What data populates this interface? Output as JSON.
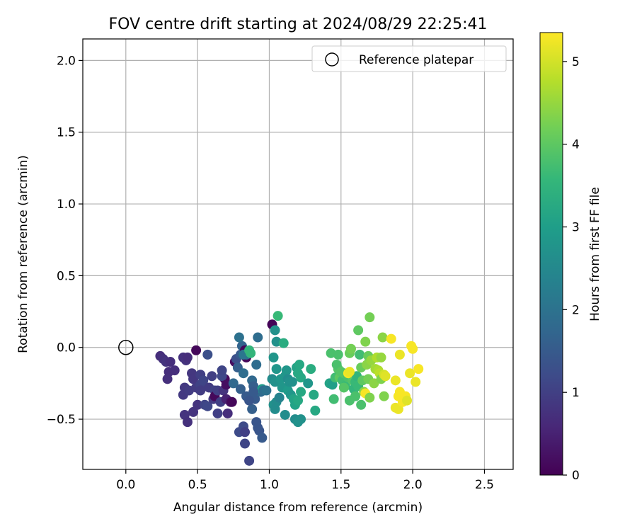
{
  "chart_data": {
    "type": "scatter",
    "title": "FOV centre drift starting at 2024/08/29 22:25:41",
    "xlabel": "Angular distance from reference (arcmin)",
    "ylabel": "Rotation from reference (arcmin)",
    "xlim": [
      -0.3,
      2.7
    ],
    "ylim": [
      -0.85,
      2.15
    ],
    "x_ticks": [
      0.0,
      0.5,
      1.0,
      1.5,
      2.0,
      2.5
    ],
    "x_tick_labels": [
      "0.0",
      "0.5",
      "1.0",
      "1.5",
      "2.0",
      "2.5"
    ],
    "y_ticks": [
      -0.5,
      0.0,
      0.5,
      1.0,
      1.5,
      2.0
    ],
    "y_tick_labels": [
      "−0.5",
      "0.0",
      "0.5",
      "1.0",
      "1.5",
      "2.0"
    ],
    "grid": true,
    "legend": {
      "position": "top-right",
      "entries": [
        {
          "label": "Reference platepar",
          "marker": "open-circle"
        }
      ]
    },
    "reference_point": {
      "x": 0.0,
      "y": 0.0
    },
    "colorbar": {
      "label": "Hours from first FF file",
      "range": [
        0,
        5.35
      ],
      "ticks": [
        0,
        1,
        2,
        3,
        4,
        5
      ],
      "tick_labels": [
        "0",
        "1",
        "2",
        "3",
        "4",
        "5"
      ],
      "colormap": [
        "#440154",
        "#482878",
        "#3e4a89",
        "#31688e",
        "#26828e",
        "#1f9e89",
        "#35b779",
        "#6ece58",
        "#b5de2b",
        "#fde725"
      ]
    },
    "points": [
      [
        0.24,
        -0.06,
        0.7
      ],
      [
        0.26,
        -0.08,
        0.75
      ],
      [
        0.28,
        -0.1,
        0.8
      ],
      [
        0.31,
        -0.1,
        0.72
      ],
      [
        0.3,
        -0.17,
        0.7
      ],
      [
        0.34,
        -0.16,
        0.72
      ],
      [
        0.29,
        -0.22,
        0.74
      ],
      [
        0.4,
        -0.07,
        0.76
      ],
      [
        0.42,
        -0.09,
        0.78
      ],
      [
        0.43,
        -0.07,
        0.7
      ],
      [
        0.46,
        -0.18,
        0.85
      ],
      [
        0.47,
        -0.22,
        0.86
      ],
      [
        0.49,
        -0.02,
        0.1
      ],
      [
        0.41,
        -0.28,
        0.9
      ],
      [
        0.4,
        -0.33,
        0.9
      ],
      [
        0.44,
        -0.3,
        0.95
      ],
      [
        0.49,
        -0.28,
        0.92
      ],
      [
        0.52,
        -0.19,
        1.0
      ],
      [
        0.52,
        -0.26,
        1.05
      ],
      [
        0.54,
        -0.23,
        1.1
      ],
      [
        0.57,
        -0.05,
        1.3
      ],
      [
        0.5,
        -0.4,
        0.8
      ],
      [
        0.55,
        -0.4,
        1.1
      ],
      [
        0.57,
        -0.41,
        1.15
      ],
      [
        0.52,
        -0.3,
        0.95
      ],
      [
        0.58,
        -0.28,
        0.95
      ],
      [
        0.6,
        -0.2,
        1.0
      ],
      [
        0.62,
        -0.3,
        1.05
      ],
      [
        0.61,
        -0.36,
        0.9
      ],
      [
        0.62,
        -0.34,
        0.1
      ],
      [
        0.64,
        -0.46,
        1.0
      ],
      [
        0.66,
        -0.38,
        1.0
      ],
      [
        0.64,
        -0.3,
        1.0
      ],
      [
        0.68,
        -0.3,
        0.8
      ],
      [
        0.69,
        -0.22,
        0.1
      ],
      [
        0.67,
        -0.2,
        1.15
      ],
      [
        0.7,
        -0.26,
        0.2
      ],
      [
        0.7,
        -0.36,
        0.5
      ],
      [
        0.71,
        -0.46,
        0.7
      ],
      [
        0.73,
        -0.38,
        0.3
      ],
      [
        0.74,
        -0.38,
        0.1
      ],
      [
        0.67,
        -0.16,
        1.1
      ],
      [
        0.47,
        -0.45,
        0.8
      ],
      [
        0.41,
        -0.47,
        0.8
      ],
      [
        0.43,
        -0.52,
        0.75
      ],
      [
        0.76,
        -0.1,
        0.2
      ],
      [
        0.77,
        -0.08,
        1.3
      ],
      [
        0.75,
        -0.25,
        1.8
      ],
      [
        0.78,
        -0.14,
        1.6
      ],
      [
        0.8,
        -0.05,
        1.5
      ],
      [
        0.81,
        0.01,
        1.7
      ],
      [
        0.82,
        -0.18,
        1.9
      ],
      [
        0.83,
        -0.02,
        0.1
      ],
      [
        0.84,
        -0.07,
        0.1
      ],
      [
        0.84,
        -0.05,
        2.0
      ],
      [
        0.82,
        -0.55,
        1.2
      ],
      [
        0.79,
        -0.59,
        1.2
      ],
      [
        0.83,
        -0.59,
        1.0
      ],
      [
        0.83,
        -0.67,
        1.1
      ],
      [
        0.86,
        -0.79,
        1.1
      ],
      [
        0.88,
        -0.23,
        1.8
      ],
      [
        0.89,
        -0.27,
        1.6
      ],
      [
        0.9,
        -0.36,
        1.5
      ],
      [
        0.88,
        -0.43,
        1.6
      ],
      [
        0.91,
        -0.52,
        1.4
      ],
      [
        0.92,
        -0.56,
        1.4
      ],
      [
        0.93,
        -0.58,
        1.4
      ],
      [
        0.95,
        -0.63,
        1.5
      ],
      [
        0.94,
        -0.31,
        1.8
      ],
      [
        0.95,
        -0.29,
        2.9
      ],
      [
        0.92,
        0.07,
        1.9
      ],
      [
        0.86,
        -0.03,
        1.8
      ],
      [
        0.91,
        -0.12,
        1.9
      ],
      [
        0.79,
        0.07,
        2.0
      ],
      [
        0.82,
        -0.05,
        2.1
      ],
      [
        0.86,
        -0.02,
        3.5
      ],
      [
        0.87,
        -0.04,
        3.5
      ],
      [
        0.8,
        -0.29,
        1.6
      ],
      [
        0.84,
        -0.34,
        1.5
      ],
      [
        0.86,
        -0.37,
        1.4
      ],
      [
        0.89,
        -0.31,
        1.5
      ],
      [
        0.96,
        -0.3,
        1.9
      ],
      [
        0.98,
        -0.3,
        2.0
      ],
      [
        1.02,
        0.16,
        0.05
      ],
      [
        1.04,
        0.12,
        2.7
      ],
      [
        1.05,
        0.04,
        2.7
      ],
      [
        1.06,
        0.22,
        3.6
      ],
      [
        1.03,
        -0.07,
        2.8
      ],
      [
        1.05,
        -0.15,
        2.8
      ],
      [
        1.02,
        -0.22,
        2.6
      ],
      [
        1.04,
        -0.24,
        2.7
      ],
      [
        1.03,
        -0.4,
        2.7
      ],
      [
        1.04,
        -0.43,
        2.6
      ],
      [
        1.05,
        -0.38,
        2.6
      ],
      [
        1.07,
        -0.35,
        2.4
      ],
      [
        1.08,
        -0.22,
        2.8
      ],
      [
        1.09,
        -0.28,
        2.8
      ],
      [
        1.1,
        0.03,
        3.3
      ],
      [
        1.11,
        -0.2,
        2.8
      ],
      [
        1.12,
        -0.16,
        2.8
      ],
      [
        1.13,
        -0.22,
        2.6
      ],
      [
        1.13,
        -0.3,
        2.9
      ],
      [
        1.14,
        -0.24,
        2.7
      ],
      [
        1.15,
        -0.33,
        2.8
      ],
      [
        1.16,
        -0.24,
        2.7
      ],
      [
        1.17,
        -0.36,
        3.1
      ],
      [
        1.18,
        -0.4,
        3.1
      ],
      [
        1.19,
        -0.14,
        3.1
      ],
      [
        1.2,
        -0.18,
        3.2
      ],
      [
        1.21,
        -0.12,
        3.2
      ],
      [
        1.22,
        -0.21,
        3.2
      ],
      [
        1.11,
        -0.47,
        2.6
      ],
      [
        1.18,
        -0.5,
        2.6
      ],
      [
        1.2,
        -0.52,
        2.7
      ],
      [
        1.22,
        -0.5,
        2.7
      ],
      [
        1.22,
        -0.31,
        3.2
      ],
      [
        1.2,
        -0.37,
        3.2
      ],
      [
        1.27,
        -0.25,
        2.8
      ],
      [
        1.29,
        -0.15,
        3.3
      ],
      [
        1.31,
        -0.33,
        3.2
      ],
      [
        1.32,
        -0.44,
        3.2
      ],
      [
        1.42,
        -0.25,
        3.1
      ],
      [
        1.43,
        -0.04,
        3.8
      ],
      [
        1.44,
        -0.26,
        3.0
      ],
      [
        1.46,
        -0.21,
        3.7
      ],
      [
        1.48,
        -0.05,
        3.8
      ],
      [
        1.45,
        -0.36,
        3.7
      ],
      [
        1.48,
        -0.15,
        3.9
      ],
      [
        1.47,
        -0.12,
        3.8
      ],
      [
        1.49,
        -0.21,
        4.0
      ],
      [
        1.5,
        -0.17,
        3.9
      ],
      [
        1.51,
        -0.23,
        3.7
      ],
      [
        1.52,
        -0.18,
        3.9
      ],
      [
        1.53,
        -0.27,
        3.6
      ],
      [
        1.55,
        -0.21,
        3.8
      ],
      [
        1.56,
        -0.37,
        3.8
      ],
      [
        1.56,
        -0.04,
        4.1
      ],
      [
        1.57,
        -0.01,
        4.2
      ],
      [
        1.58,
        -0.23,
        3.9
      ],
      [
        1.58,
        -0.2,
        4.0
      ],
      [
        1.59,
        -0.29,
        3.5
      ],
      [
        1.6,
        -0.34,
        3.8
      ],
      [
        1.6,
        -0.24,
        3.6
      ],
      [
        1.61,
        -0.2,
        3.5
      ],
      [
        1.62,
        -0.27,
        3.6
      ],
      [
        1.62,
        0.12,
        4.0
      ],
      [
        1.63,
        -0.05,
        3.7
      ],
      [
        1.64,
        -0.4,
        3.8
      ],
      [
        1.64,
        -0.14,
        4.1
      ],
      [
        1.65,
        -0.23,
        4.0
      ],
      [
        1.66,
        -0.31,
        4.4
      ],
      [
        1.67,
        -0.32,
        5.3
      ],
      [
        1.67,
        0.04,
        4.3
      ],
      [
        1.68,
        -0.12,
        4.4
      ],
      [
        1.69,
        -0.06,
        4.1
      ],
      [
        1.69,
        -0.22,
        4.2
      ],
      [
        1.7,
        -0.35,
        4.3
      ],
      [
        1.7,
        0.21,
        4.2
      ],
      [
        1.71,
        -0.09,
        4.5
      ],
      [
        1.73,
        -0.25,
        4.4
      ],
      [
        1.74,
        -0.15,
        4.6
      ],
      [
        1.75,
        -0.07,
        4.7
      ],
      [
        1.76,
        -0.16,
        4.7
      ],
      [
        1.77,
        -0.18,
        4.8
      ],
      [
        1.78,
        -0.22,
        4.3
      ],
      [
        1.78,
        -0.07,
        4.5
      ],
      [
        1.79,
        0.07,
        4.4
      ],
      [
        1.8,
        -0.34,
        4.3
      ],
      [
        1.8,
        -0.19,
        5.0
      ],
      [
        1.81,
        -0.2,
        5.1
      ],
      [
        1.85,
        0.06,
        5.3
      ],
      [
        1.88,
        -0.42,
        5.2
      ],
      [
        1.9,
        -0.43,
        5.2
      ],
      [
        1.9,
        -0.34,
        5.3
      ],
      [
        1.91,
        -0.05,
        5.2
      ],
      [
        1.91,
        -0.31,
        5.3
      ],
      [
        1.93,
        -0.38,
        5.3
      ],
      [
        1.95,
        -0.34,
        5.3
      ],
      [
        1.98,
        -0.18,
        5.2
      ],
      [
        1.99,
        0.01,
        5.3
      ],
      [
        2.0,
        -0.01,
        5.3
      ],
      [
        2.02,
        -0.24,
        5.2
      ],
      [
        2.04,
        -0.15,
        5.3
      ],
      [
        1.55,
        -0.18,
        5.3
      ],
      [
        1.56,
        -0.17,
        5.2
      ],
      [
        1.52,
        -0.28,
        3.9
      ],
      [
        1.96,
        -0.37,
        5.1
      ],
      [
        1.88,
        -0.23,
        5.2
      ]
    ]
  }
}
